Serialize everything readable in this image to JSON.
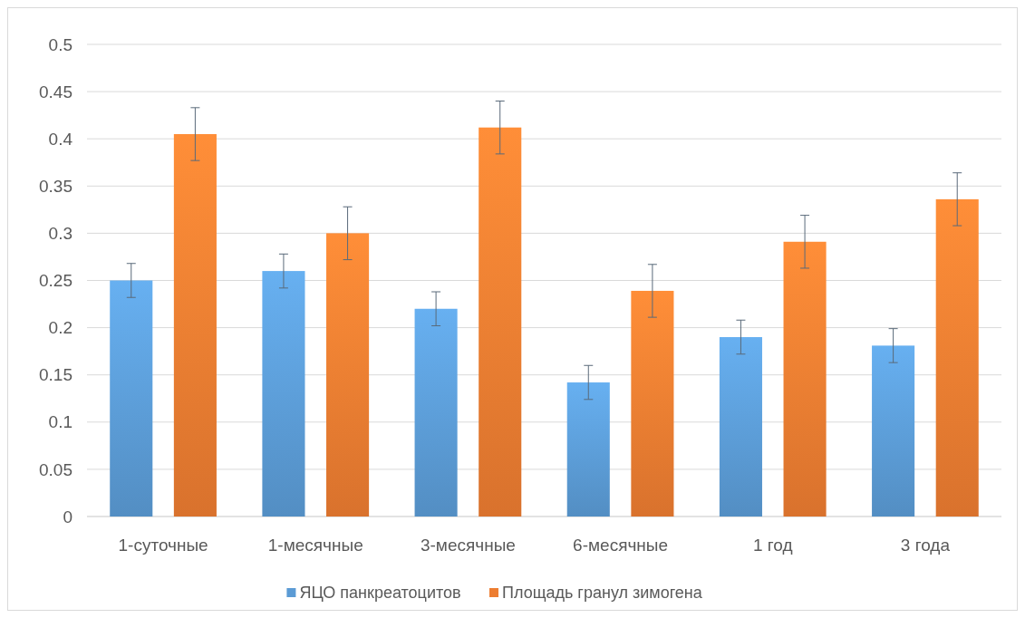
{
  "chart_data": {
    "type": "bar",
    "categories": [
      "1-суточные",
      "1-месячные",
      "3-месячные",
      "6-месячные",
      "1 год",
      "3 года"
    ],
    "series": [
      {
        "name": "ЯЦО панкреатоцитов",
        "color": "#5b9bd5",
        "values": [
          0.25,
          0.26,
          0.22,
          0.142,
          0.19,
          0.181
        ],
        "errors": [
          0.018,
          0.018,
          0.018,
          0.018,
          0.018,
          0.018
        ]
      },
      {
        "name": "Площадь гранул зимогена",
        "color": "#ed7d31",
        "values": [
          0.405,
          0.3,
          0.412,
          0.239,
          0.291,
          0.336
        ],
        "errors": [
          0.028,
          0.028,
          0.028,
          0.028,
          0.028,
          0.028
        ]
      }
    ],
    "ylim": [
      0,
      0.5
    ],
    "yticks": [
      0,
      0.05,
      0.1,
      0.15,
      0.2,
      0.25,
      0.3,
      0.35,
      0.4,
      0.45,
      0.5
    ],
    "grid": "y",
    "legend": "bottom"
  }
}
